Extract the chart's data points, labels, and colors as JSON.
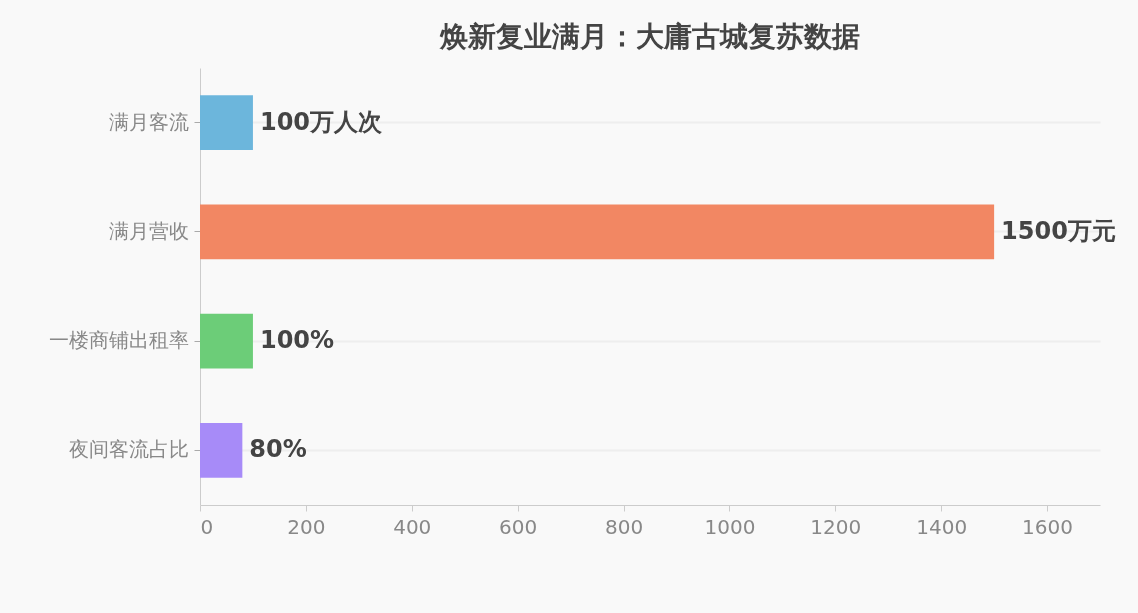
{
  "chart_data": {
    "type": "bar",
    "orientation": "horizontal",
    "title": "焕新复业满月：大庸古城复苏数据",
    "categories": [
      "满月客流",
      "满月营收",
      "一楼商铺出租率",
      "夜间客流占比"
    ],
    "values": [
      100,
      1500,
      100,
      80
    ],
    "colors": [
      "#6cb6dc",
      "#f28763",
      "#6ccd78",
      "#a78bf8"
    ],
    "value_labels": [
      "100万人次",
      "1500万元",
      "100%",
      "80%"
    ],
    "xlim": [
      0,
      1700
    ],
    "xticks": [
      0,
      200,
      400,
      600,
      800,
      1000,
      1200,
      1400,
      1600
    ],
    "grid": "y"
  }
}
